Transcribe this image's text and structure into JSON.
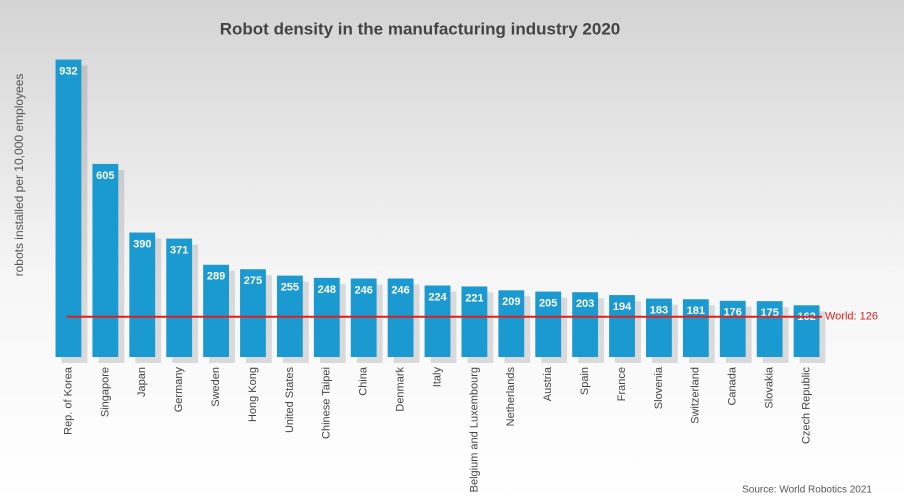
{
  "chart_data": {
    "type": "bar",
    "title": "Robot density in the manufacturing industry 2020",
    "ylabel": "robots installed per 10,000 employees",
    "categories": [
      "Rep. of Korea",
      "Singapore",
      "Japan",
      "Germany",
      "Sweden",
      "Hong Kong",
      "United States",
      "Chinese Taipei",
      "China",
      "Denmark",
      "Italy",
      "Belgium and Luxembourg",
      "Netherlands",
      "Austria",
      "Spain",
      "France",
      "Slovenia",
      "Switzerland",
      "Canada",
      "Slovakia",
      "Czech Republic"
    ],
    "values": [
      932,
      605,
      390,
      371,
      289,
      275,
      255,
      248,
      246,
      246,
      224,
      221,
      209,
      205,
      203,
      194,
      183,
      181,
      176,
      175,
      162
    ],
    "color": "#1a9ad0",
    "ylim": [
      0,
      940
    ],
    "reference_line": {
      "value": 126,
      "label": "World: 126",
      "color": "#e0201b"
    },
    "source": "Source: World Robotics 2021"
  }
}
